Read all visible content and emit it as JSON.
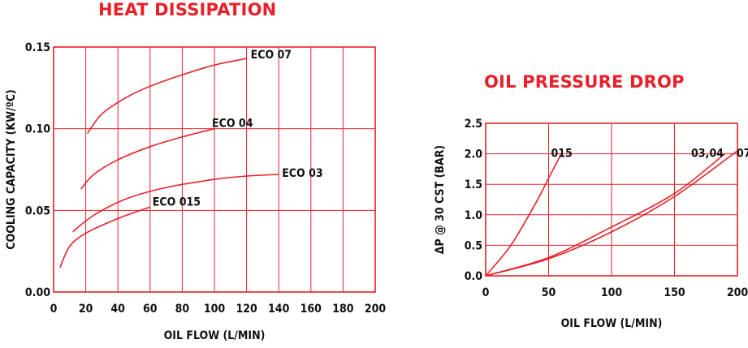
{
  "chart_data": [
    {
      "type": "line",
      "title": "HEAT DISSIPATION",
      "xlabel": "OIL FLOW (L/MIN)",
      "ylabel": "COOLING CAPACITY (KW/ºC)",
      "xlim": [
        0,
        200
      ],
      "ylim": [
        0,
        0.15
      ],
      "x_ticks": [
        "0",
        "20",
        "40",
        "60",
        "80",
        "100",
        "120",
        "140",
        "160",
        "180",
        "200"
      ],
      "y_ticks": [
        "0.00",
        "0.05",
        "0.10",
        "0.15"
      ],
      "grid": true,
      "color": "#e8202a",
      "series": [
        {
          "name": "ECO 07",
          "x": [
            21,
            30,
            45,
            60,
            80,
            100,
            120
          ],
          "y": [
            0.097,
            0.109,
            0.119,
            0.126,
            0.133,
            0.139,
            0.143
          ]
        },
        {
          "name": "ECO 04",
          "x": [
            17,
            25,
            40,
            60,
            80,
            100
          ],
          "y": [
            0.063,
            0.072,
            0.081,
            0.089,
            0.095,
            0.1
          ]
        },
        {
          "name": "ECO 03",
          "x": [
            12,
            25,
            45,
            70,
            100,
            120,
            140
          ],
          "y": [
            0.037,
            0.047,
            0.057,
            0.064,
            0.069,
            0.071,
            0.072
          ]
        },
        {
          "name": "ECO 015",
          "x": [
            4,
            10,
            20,
            40,
            60
          ],
          "y": [
            0.015,
            0.028,
            0.036,
            0.045,
            0.052
          ]
        }
      ]
    },
    {
      "type": "line",
      "title": "OIL PRESSURE DROP",
      "xlabel": "OIL FLOW (L/MIN)",
      "ylabel": "ΔP @ 30 CST (BAR)",
      "xlim": [
        0,
        200
      ],
      "ylim": [
        0,
        2.5
      ],
      "x_ticks": [
        "0",
        "50",
        "100",
        "150",
        "200"
      ],
      "y_ticks": [
        "0.0",
        "0.5",
        "1.0",
        "1.5",
        "2.0",
        "2.5"
      ],
      "grid": true,
      "color": "#e8202a",
      "series": [
        {
          "name": "015",
          "x": [
            0,
            20,
            40,
            50,
            60
          ],
          "y": [
            0,
            0.5,
            1.2,
            1.6,
            2.0
          ]
        },
        {
          "name": "03,04",
          "x": [
            0,
            50,
            100,
            150,
            190
          ],
          "y": [
            0,
            0.3,
            0.8,
            1.35,
            2.0
          ]
        },
        {
          "name": "07",
          "x": [
            0,
            50,
            100,
            150,
            200
          ],
          "y": [
            0,
            0.28,
            0.72,
            1.3,
            2.05
          ]
        }
      ]
    }
  ]
}
